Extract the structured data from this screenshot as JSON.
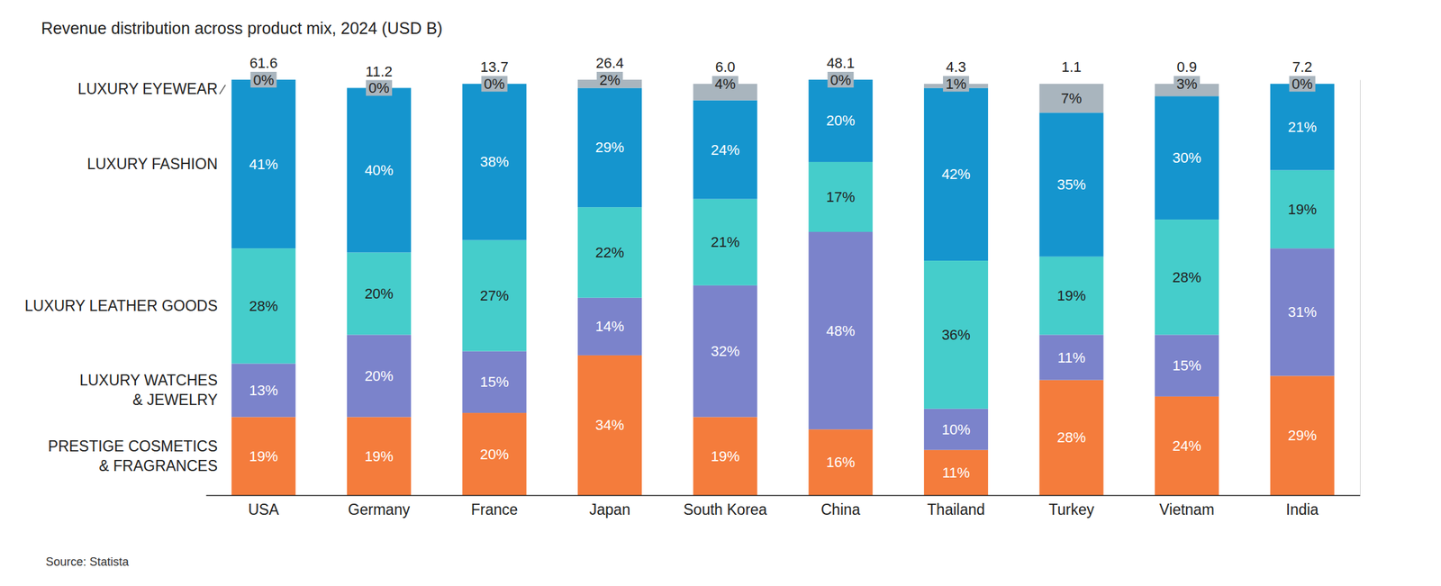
{
  "chart_data": {
    "type": "bar",
    "title": "Revenue distribution across product mix, 2024 (USD B)",
    "source": "Source: Statista",
    "stacked": true,
    "data_labels": true,
    "tick_labels": "x",
    "grid": false,
    "categories": [
      "USA",
      "Germany",
      "France",
      "Japan",
      "South Korea",
      "China",
      "Thailand",
      "Turkey",
      "Vietnam",
      "India"
    ],
    "totals": [
      61.6,
      11.2,
      13.7,
      26.4,
      6.0,
      48.1,
      4.3,
      1.1,
      0.9,
      7.2
    ],
    "total_labels": [
      "61.6",
      "11.2",
      "13.7",
      "26.4",
      "6.0",
      "48.1",
      "4.3",
      "1.1",
      "0.9",
      "7.2"
    ],
    "ylim": [
      0,
      101
    ],
    "yticks": [],
    "series": [
      {
        "name": "PRESTIGE COSMETICS & FRAGRANCES",
        "color": "#f47c3c",
        "values": [
          19,
          19,
          20,
          34,
          19,
          16,
          11,
          28,
          24,
          29
        ],
        "value_labels": [
          "19%",
          "19%",
          "20%",
          "34%",
          "19%",
          "16%",
          "11%",
          "28%",
          "24%",
          "29%"
        ]
      },
      {
        "name": "LUXURY WATCHES & JEWELRY",
        "color": "#7b83cb",
        "values": [
          13,
          20,
          15,
          14,
          32,
          48,
          10,
          11,
          15,
          31
        ],
        "value_labels": [
          "13%",
          "20%",
          "15%",
          "14%",
          "32%",
          "48%",
          "10%",
          "11%",
          "15%",
          "31%"
        ]
      },
      {
        "name": "LUXURY LEATHER GOODS",
        "color": "#45cdcb",
        "values": [
          28,
          20,
          27,
          22,
          21,
          17,
          36,
          19,
          28,
          19
        ],
        "value_labels": [
          "28%",
          "20%",
          "27%",
          "22%",
          "21%",
          "17%",
          "36%",
          "19%",
          "28%",
          "19%"
        ]
      },
      {
        "name": "LUXURY FASHION",
        "color": "#1595ce",
        "values": [
          41,
          40,
          38,
          29,
          24,
          20,
          42,
          35,
          30,
          21
        ],
        "value_labels": [
          "41%",
          "40%",
          "38%",
          "29%",
          "24%",
          "20%",
          "42%",
          "35%",
          "30%",
          "21%"
        ]
      },
      {
        "name": "LUXURY EYEWEAR",
        "color": "#a9b5be",
        "values": [
          0,
          0,
          0,
          2,
          4,
          0,
          1,
          7,
          3,
          0
        ],
        "value_labels": [
          "0%",
          "0%",
          "0%",
          "2%",
          "4%",
          "0%",
          "1%",
          "7%",
          "3%",
          "0%"
        ]
      }
    ]
  }
}
